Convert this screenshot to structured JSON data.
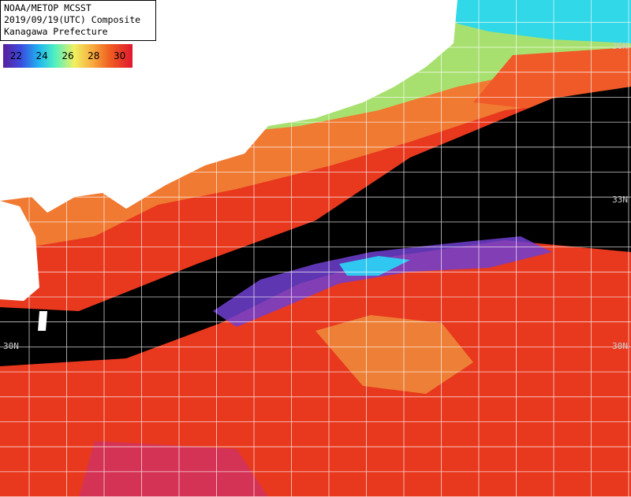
{
  "header": {
    "lines": [
      "NOAA/METOP MCSST",
      "2019/09/19(UTC) Composite",
      "Kanagawa Prefecture"
    ]
  },
  "legend": {
    "ticks": [
      22,
      24,
      26,
      28,
      30
    ]
  },
  "lat_labels": [
    "36N",
    "33N",
    "30N",
    "30N"
  ]
}
